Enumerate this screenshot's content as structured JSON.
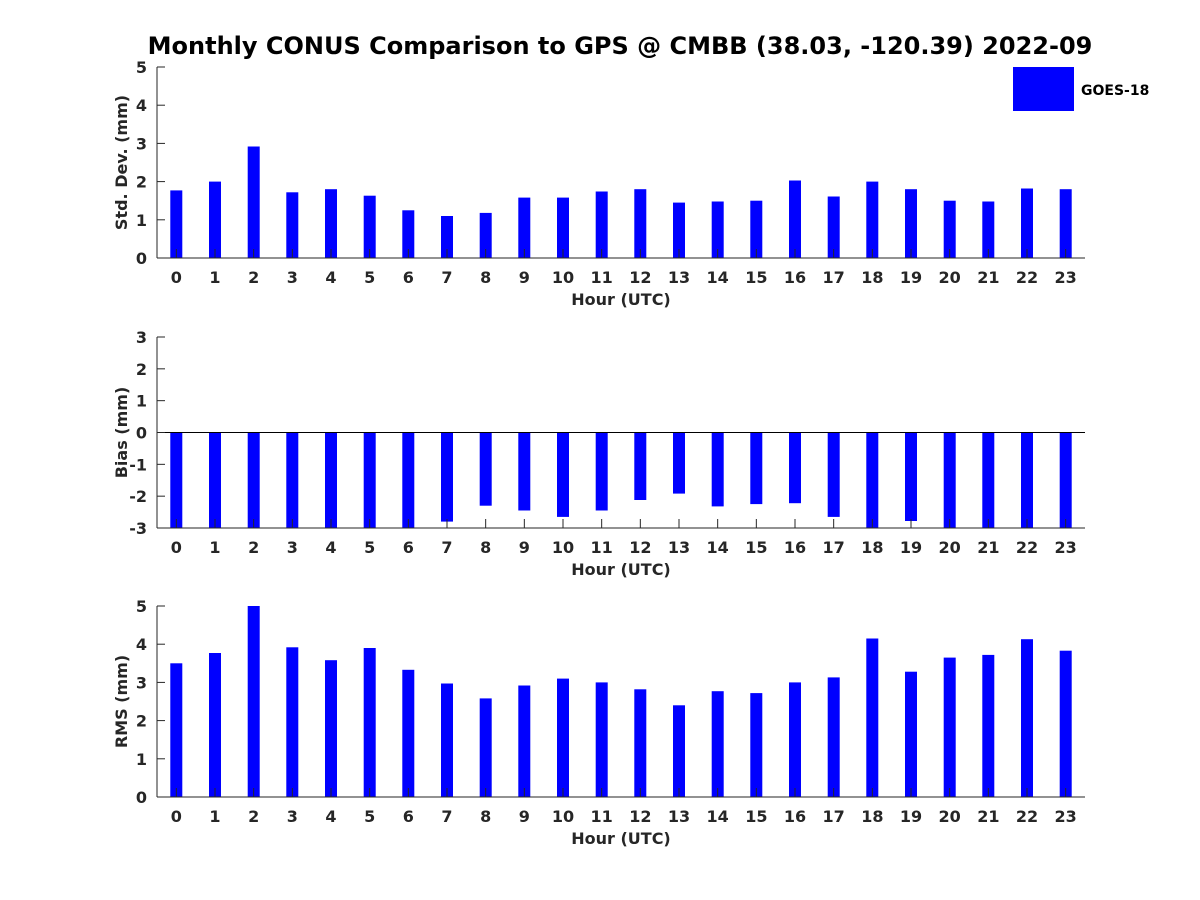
{
  "figure": {
    "title": "Monthly CONUS Comparison to GPS @ CMBB (38.03, -120.39) 2022-09",
    "legend": {
      "label": "GOES-18",
      "placement": "top-right"
    }
  },
  "colors": {
    "bar": "#0000ff",
    "axis": "#262626",
    "background": "#ffffff"
  },
  "chart_data": [
    {
      "type": "bar",
      "xlabel": "Hour (UTC)",
      "ylabel": "Std. Dev. (mm)",
      "ylim": [
        0,
        5
      ],
      "yticks": [
        0,
        1,
        2,
        3,
        4,
        5
      ],
      "categories": [
        "0",
        "1",
        "2",
        "3",
        "4",
        "5",
        "6",
        "7",
        "8",
        "9",
        "10",
        "11",
        "12",
        "13",
        "14",
        "15",
        "16",
        "17",
        "18",
        "19",
        "20",
        "21",
        "22",
        "23"
      ],
      "series": [
        {
          "name": "GOES-18",
          "values": [
            1.77,
            2.0,
            2.92,
            1.72,
            1.8,
            1.63,
            1.25,
            1.1,
            1.18,
            1.58,
            1.58,
            1.74,
            1.8,
            1.45,
            1.48,
            1.5,
            2.03,
            1.61,
            2.0,
            1.8,
            1.5,
            1.48,
            1.82,
            1.8
          ]
        }
      ],
      "grid": false
    },
    {
      "type": "bar",
      "xlabel": "Hour (UTC)",
      "ylabel": "Bias (mm)",
      "ylim": [
        -3,
        3
      ],
      "yticks": [
        -3,
        -2,
        -1,
        0,
        1,
        2,
        3
      ],
      "categories": [
        "0",
        "1",
        "2",
        "3",
        "4",
        "5",
        "6",
        "7",
        "8",
        "9",
        "10",
        "11",
        "12",
        "13",
        "14",
        "15",
        "16",
        "17",
        "18",
        "19",
        "20",
        "21",
        "22",
        "23"
      ],
      "series": [
        {
          "name": "GOES-18",
          "values": [
            -3.0,
            -3.0,
            -3.0,
            -3.0,
            -3.0,
            -3.0,
            -3.0,
            -2.8,
            -2.3,
            -2.45,
            -2.65,
            -2.45,
            -2.12,
            -1.92,
            -2.32,
            -2.25,
            -2.22,
            -2.65,
            -3.0,
            -2.78,
            -3.0,
            -3.0,
            -3.0,
            -3.0
          ]
        }
      ],
      "grid": false
    },
    {
      "type": "bar",
      "xlabel": "Hour (UTC)",
      "ylabel": "RMS (mm)",
      "ylim": [
        0,
        5
      ],
      "yticks": [
        0,
        1,
        2,
        3,
        4,
        5
      ],
      "categories": [
        "0",
        "1",
        "2",
        "3",
        "4",
        "5",
        "6",
        "7",
        "8",
        "9",
        "10",
        "11",
        "12",
        "13",
        "14",
        "15",
        "16",
        "17",
        "18",
        "19",
        "20",
        "21",
        "22",
        "23"
      ],
      "series": [
        {
          "name": "GOES-18",
          "values": [
            3.5,
            3.77,
            5.0,
            3.92,
            3.58,
            3.9,
            3.33,
            2.97,
            2.58,
            2.92,
            3.1,
            3.0,
            2.82,
            2.4,
            2.77,
            2.72,
            3.0,
            3.13,
            4.15,
            3.28,
            3.65,
            3.72,
            4.13,
            3.83
          ]
        }
      ],
      "grid": false
    }
  ]
}
